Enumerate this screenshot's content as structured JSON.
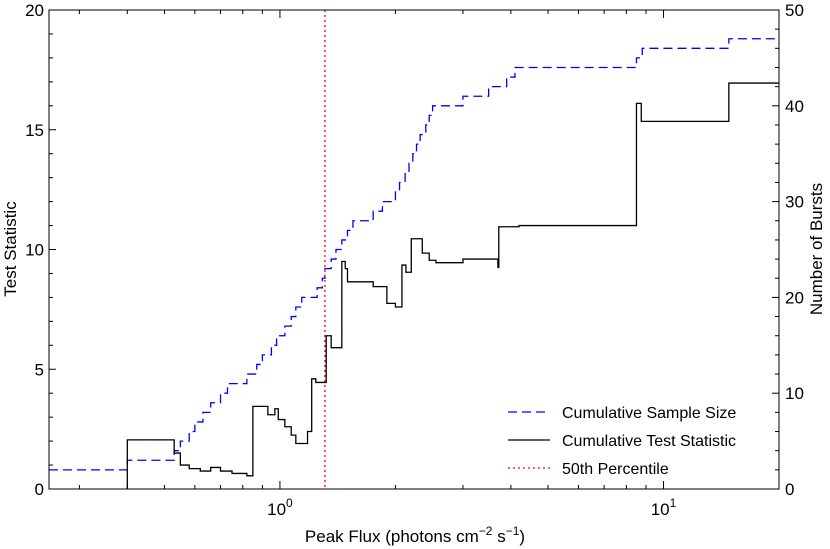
{
  "chart_data": {
    "type": "line",
    "xlabel": "Peak Flux (photons cm",
    "xlabel_sup": "−2",
    "xlabel_mid": " s",
    "xlabel_sup2": "−1",
    "xlabel_end": ")",
    "ylabel": "Test Statistic",
    "ylabel_right": "Number of Bursts",
    "x_scale": "log",
    "xlim": [
      0.25,
      20
    ],
    "ylim": [
      0,
      20
    ],
    "ylim_right": [
      0,
      50
    ],
    "y_ticks": [
      0,
      5,
      10,
      15,
      20
    ],
    "y_ticks_right": [
      0,
      10,
      20,
      30,
      40,
      50
    ],
    "x_tick_labels": [
      {
        "value": 1,
        "base": "10",
        "exp": "0"
      },
      {
        "value": 10,
        "base": "10",
        "exp": "1"
      }
    ],
    "legend_position": "bottom-right",
    "series": [
      {
        "name": "Cumulative Sample Size",
        "axis": "right",
        "color": "#0000ff",
        "style": "dashed",
        "points": [
          [
            0.25,
            2
          ],
          [
            0.4,
            2
          ],
          [
            0.4,
            3
          ],
          [
            0.53,
            3
          ],
          [
            0.53,
            4
          ],
          [
            0.55,
            4
          ],
          [
            0.55,
            5
          ],
          [
            0.58,
            5
          ],
          [
            0.58,
            6
          ],
          [
            0.6,
            6
          ],
          [
            0.6,
            7
          ],
          [
            0.63,
            7
          ],
          [
            0.63,
            8
          ],
          [
            0.66,
            8
          ],
          [
            0.66,
            9
          ],
          [
            0.7,
            9
          ],
          [
            0.7,
            10
          ],
          [
            0.73,
            10
          ],
          [
            0.73,
            11
          ],
          [
            0.82,
            11
          ],
          [
            0.82,
            12
          ],
          [
            0.87,
            12
          ],
          [
            0.87,
            13
          ],
          [
            0.9,
            13
          ],
          [
            0.9,
            14
          ],
          [
            0.95,
            14
          ],
          [
            0.95,
            15
          ],
          [
            0.98,
            15
          ],
          [
            0.98,
            16
          ],
          [
            1.03,
            16
          ],
          [
            1.03,
            17
          ],
          [
            1.07,
            17
          ],
          [
            1.07,
            18
          ],
          [
            1.1,
            18
          ],
          [
            1.1,
            19
          ],
          [
            1.14,
            19
          ],
          [
            1.14,
            20
          ],
          [
            1.25,
            20
          ],
          [
            1.25,
            21
          ],
          [
            1.29,
            21
          ],
          [
            1.29,
            22
          ],
          [
            1.31,
            22
          ],
          [
            1.31,
            23
          ],
          [
            1.36,
            23
          ],
          [
            1.36,
            24
          ],
          [
            1.4,
            24
          ],
          [
            1.4,
            25
          ],
          [
            1.45,
            25
          ],
          [
            1.45,
            26
          ],
          [
            1.5,
            26
          ],
          [
            1.5,
            27
          ],
          [
            1.55,
            27
          ],
          [
            1.55,
            28
          ],
          [
            1.75,
            28
          ],
          [
            1.75,
            29
          ],
          [
            1.85,
            29
          ],
          [
            1.85,
            30
          ],
          [
            2.0,
            30
          ],
          [
            2.0,
            31
          ],
          [
            2.05,
            31
          ],
          [
            2.05,
            32
          ],
          [
            2.12,
            32
          ],
          [
            2.12,
            33
          ],
          [
            2.17,
            33
          ],
          [
            2.17,
            34
          ],
          [
            2.22,
            34
          ],
          [
            2.22,
            35
          ],
          [
            2.27,
            35
          ],
          [
            2.27,
            36
          ],
          [
            2.32,
            36
          ],
          [
            2.32,
            37
          ],
          [
            2.4,
            37
          ],
          [
            2.4,
            38
          ],
          [
            2.45,
            38
          ],
          [
            2.45,
            39
          ],
          [
            2.5,
            39
          ],
          [
            2.5,
            40
          ],
          [
            3.0,
            40
          ],
          [
            3.0,
            41
          ],
          [
            3.5,
            41
          ],
          [
            3.5,
            42
          ],
          [
            3.9,
            42
          ],
          [
            3.9,
            43
          ],
          [
            4.1,
            43
          ],
          [
            4.1,
            44
          ],
          [
            8.5,
            44
          ],
          [
            8.5,
            45
          ],
          [
            8.8,
            45
          ],
          [
            8.8,
            46
          ],
          [
            14.8,
            46
          ],
          [
            14.8,
            47
          ],
          [
            20,
            47
          ]
        ]
      },
      {
        "name": "Cumulative Test Statistic",
        "axis": "left",
        "color": "#000000",
        "style": "solid",
        "points": [
          [
            0.4,
            0
          ],
          [
            0.4,
            2.05
          ],
          [
            0.53,
            2.05
          ],
          [
            0.53,
            1.5
          ],
          [
            0.55,
            1.5
          ],
          [
            0.55,
            1.0
          ],
          [
            0.58,
            1.0
          ],
          [
            0.58,
            0.85
          ],
          [
            0.62,
            0.85
          ],
          [
            0.62,
            0.75
          ],
          [
            0.66,
            0.75
          ],
          [
            0.66,
            0.9
          ],
          [
            0.7,
            0.9
          ],
          [
            0.7,
            0.75
          ],
          [
            0.75,
            0.75
          ],
          [
            0.75,
            0.65
          ],
          [
            0.82,
            0.65
          ],
          [
            0.82,
            0.55
          ],
          [
            0.85,
            0.55
          ],
          [
            0.85,
            3.45
          ],
          [
            0.93,
            3.45
          ],
          [
            0.93,
            3.1
          ],
          [
            0.97,
            3.1
          ],
          [
            0.97,
            3.35
          ],
          [
            0.99,
            3.35
          ],
          [
            0.99,
            2.9
          ],
          [
            1.03,
            2.9
          ],
          [
            1.03,
            2.6
          ],
          [
            1.07,
            2.6
          ],
          [
            1.07,
            2.25
          ],
          [
            1.1,
            2.25
          ],
          [
            1.1,
            1.9
          ],
          [
            1.18,
            1.9
          ],
          [
            1.18,
            2.4
          ],
          [
            1.21,
            2.4
          ],
          [
            1.21,
            4.6
          ],
          [
            1.24,
            4.6
          ],
          [
            1.24,
            4.45
          ],
          [
            1.32,
            4.45
          ],
          [
            1.32,
            6.4
          ],
          [
            1.36,
            6.4
          ],
          [
            1.36,
            5.9
          ],
          [
            1.45,
            5.9
          ],
          [
            1.45,
            9.5
          ],
          [
            1.48,
            9.5
          ],
          [
            1.48,
            9.2
          ],
          [
            1.5,
            9.2
          ],
          [
            1.5,
            8.65
          ],
          [
            1.75,
            8.65
          ],
          [
            1.75,
            8.45
          ],
          [
            1.9,
            8.45
          ],
          [
            1.9,
            7.75
          ],
          [
            2.0,
            7.75
          ],
          [
            2.0,
            7.6
          ],
          [
            2.08,
            7.6
          ],
          [
            2.08,
            9.35
          ],
          [
            2.13,
            9.35
          ],
          [
            2.13,
            9.05
          ],
          [
            2.2,
            9.05
          ],
          [
            2.2,
            10.45
          ],
          [
            2.35,
            10.45
          ],
          [
            2.35,
            9.85
          ],
          [
            2.45,
            9.85
          ],
          [
            2.45,
            9.55
          ],
          [
            2.55,
            9.55
          ],
          [
            2.55,
            9.45
          ],
          [
            3.0,
            9.45
          ],
          [
            3.0,
            9.6
          ],
          [
            3.7,
            9.6
          ],
          [
            3.7,
            9.25
          ],
          [
            3.72,
            9.25
          ],
          [
            3.72,
            10.95
          ],
          [
            4.2,
            10.95
          ],
          [
            4.2,
            11.0
          ],
          [
            8.5,
            11.0
          ],
          [
            8.5,
            16.1
          ],
          [
            8.75,
            16.1
          ],
          [
            8.75,
            15.35
          ],
          [
            14.8,
            15.35
          ],
          [
            14.8,
            16.95
          ],
          [
            20,
            16.95
          ]
        ]
      },
      {
        "name": "50th Percentile",
        "axis": "left",
        "color": "#ff0000",
        "style": "dotted",
        "x": 1.31
      }
    ]
  }
}
